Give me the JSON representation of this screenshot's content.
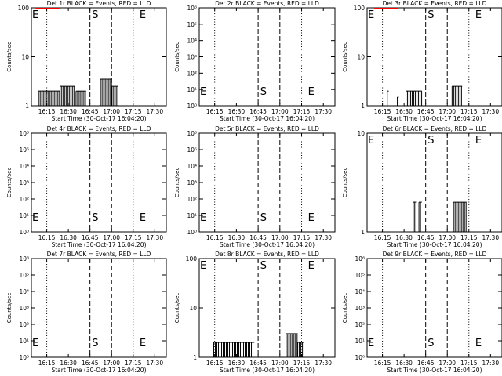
{
  "chart_data": [
    {
      "type": "line",
      "title": "Det 1r BLACK = Events, RED = LLD",
      "xlabel": "Start Time (30-Oct-17 16:04:20)",
      "ylabel": "Counts/sec",
      "x_tick_labels": [
        "16:15",
        "16:30",
        "16:45",
        "17:00",
        "17:15",
        "17:30"
      ],
      "y_scale": "log",
      "ylim": [
        1,
        100
      ],
      "y_tick_labels": [
        "1",
        "10",
        "100"
      ],
      "markers": [
        {
          "label": "E",
          "minute": 0
        },
        {
          "label": "S",
          "minute": 41
        },
        {
          "label": "E",
          "minute": 74
        }
      ],
      "events": [
        {
          "from": 5,
          "to": 20,
          "level": 2
        },
        {
          "from": 20,
          "to": 30,
          "level": 2.5
        },
        {
          "from": 31,
          "to": 38,
          "level": 2
        },
        {
          "from": 48,
          "to": 56,
          "level": 3.5
        },
        {
          "from": 56,
          "to": 60,
          "level": 2.5
        }
      ],
      "lld": [
        {
          "from": 3,
          "to": 20,
          "level": 100
        }
      ]
    },
    {
      "type": "line",
      "title": "Det 2r BLACK = Events, RED = LLD",
      "xlabel": "Start Time (30-Oct-17 16:04:20)",
      "ylabel": "Counts/sec",
      "x_tick_labels": [
        "16:15",
        "16:30",
        "16:45",
        "17:00",
        "17:15",
        "17:30"
      ],
      "y_scale": "log",
      "ylim": [
        1,
        1000000
      ],
      "y_tick_labels": [
        "10⁰",
        "10¹",
        "10²",
        "10³",
        "10⁴",
        "10⁵",
        "10⁶"
      ],
      "markers": [
        {
          "label": "E",
          "minute": 0
        },
        {
          "label": "S",
          "minute": 41
        },
        {
          "label": "E",
          "minute": 74
        }
      ],
      "events": [],
      "lld": []
    },
    {
      "type": "line",
      "title": "Det 3r BLACK = Events, RED = LLD",
      "xlabel": "Start Time (30-Oct-17 16:04:20)",
      "ylabel": "Counts/sec",
      "x_tick_labels": [
        "16:15",
        "16:30",
        "16:45",
        "17:00",
        "17:15",
        "17:30"
      ],
      "y_scale": "log",
      "ylim": [
        1,
        100
      ],
      "y_tick_labels": [
        "1",
        "10",
        "100"
      ],
      "markers": [
        {
          "label": "E",
          "minute": 0
        },
        {
          "label": "S",
          "minute": 41
        },
        {
          "label": "E",
          "minute": 74
        }
      ],
      "events": [
        {
          "from": 14,
          "to": 15,
          "level": 2
        },
        {
          "from": 21,
          "to": 22,
          "level": 1.5
        },
        {
          "from": 27,
          "to": 38,
          "level": 2
        },
        {
          "from": 59,
          "to": 66,
          "level": 2.5
        }
      ],
      "lld": [
        {
          "from": 5,
          "to": 22,
          "level": 100
        }
      ]
    },
    {
      "type": "line",
      "title": "Det 4r BLACK = Events, RED = LLD",
      "xlabel": "Start Time (30-Oct-17 16:04:20)",
      "ylabel": "Counts/sec",
      "x_tick_labels": [
        "16:15",
        "16:30",
        "16:45",
        "17:00",
        "17:15",
        "17:30"
      ],
      "y_scale": "log",
      "ylim": [
        1,
        1000000
      ],
      "y_tick_labels": [
        "10⁰",
        "10¹",
        "10²",
        "10³",
        "10⁴",
        "10⁵",
        "10⁶"
      ],
      "markers": [
        {
          "label": "E",
          "minute": 0
        },
        {
          "label": "S",
          "minute": 41
        },
        {
          "label": "E",
          "minute": 74
        }
      ],
      "events": [],
      "lld": []
    },
    {
      "type": "line",
      "title": "Det 5r BLACK = Events, RED = LLD",
      "xlabel": "Start Time (30-Oct-17 16:04:20)",
      "ylabel": "Counts/sec",
      "x_tick_labels": [
        "16:15",
        "16:30",
        "16:45",
        "17:00",
        "17:15",
        "17:30"
      ],
      "y_scale": "log",
      "ylim": [
        1,
        1000000
      ],
      "y_tick_labels": [
        "10⁰",
        "10¹",
        "10²",
        "10³",
        "10⁴",
        "10⁵",
        "10⁶"
      ],
      "markers": [
        {
          "label": "E",
          "minute": 0
        },
        {
          "label": "S",
          "minute": 41
        },
        {
          "label": "E",
          "minute": 74
        }
      ],
      "events": [],
      "lld": []
    },
    {
      "type": "line",
      "title": "Det 6r BLACK = Events, RED = LLD",
      "xlabel": "Start Time (30-Oct-17 16:04:20)",
      "ylabel": "Counts/sec",
      "x_tick_labels": [
        "16:15",
        "16:30",
        "16:45",
        "17:00",
        "17:15",
        "17:30"
      ],
      "y_scale": "log",
      "ylim": [
        1,
        10
      ],
      "y_tick_labels": [
        "1",
        "10"
      ],
      "markers": [
        {
          "label": "E",
          "minute": 0
        },
        {
          "label": "S",
          "minute": 41
        },
        {
          "label": "E",
          "minute": 74
        }
      ],
      "events": [
        {
          "from": 32,
          "to": 34,
          "level": 2
        },
        {
          "from": 36,
          "to": 38,
          "level": 2
        },
        {
          "from": 60,
          "to": 69,
          "level": 2
        }
      ],
      "lld": []
    },
    {
      "type": "line",
      "title": "Det 7r BLACK = Events, RED = LLD",
      "xlabel": "Start Time (30-Oct-17 16:04:20)",
      "ylabel": "Counts/sec",
      "x_tick_labels": [
        "16:15",
        "16:30",
        "16:45",
        "17:00",
        "17:15",
        "17:30"
      ],
      "y_scale": "log",
      "ylim": [
        1,
        1000000
      ],
      "y_tick_labels": [
        "10⁰",
        "10¹",
        "10²",
        "10³",
        "10⁴",
        "10⁵",
        "10⁶"
      ],
      "markers": [
        {
          "label": "E",
          "minute": 0
        },
        {
          "label": "S",
          "minute": 41
        },
        {
          "label": "E",
          "minute": 74
        }
      ],
      "events": [],
      "lld": []
    },
    {
      "type": "line",
      "title": "Det 8r BLACK = Events, RED = LLD",
      "xlabel": "Start Time (30-Oct-17 16:04:20)",
      "ylabel": "Counts/sec",
      "x_tick_labels": [
        "16:15",
        "16:30",
        "16:45",
        "17:00",
        "17:15",
        "17:30"
      ],
      "y_scale": "log",
      "ylim": [
        1,
        100
      ],
      "y_tick_labels": [
        "1",
        "10",
        "100"
      ],
      "markers": [
        {
          "label": "E",
          "minute": 0
        },
        {
          "label": "S",
          "minute": 41
        },
        {
          "label": "E",
          "minute": 74
        }
      ],
      "events": [
        {
          "from": 10,
          "to": 38,
          "level": 2
        },
        {
          "from": 60,
          "to": 68,
          "level": 3
        },
        {
          "from": 68,
          "to": 72,
          "level": 2
        }
      ],
      "lld": []
    },
    {
      "type": "line",
      "title": "Det 9r BLACK = Events, RED = LLD",
      "xlabel": "Start Time (30-Oct-17 16:04:20)",
      "ylabel": "Counts/sec",
      "x_tick_labels": [
        "16:15",
        "16:30",
        "16:45",
        "17:00",
        "17:15",
        "17:30"
      ],
      "y_scale": "log",
      "ylim": [
        1,
        1000000
      ],
      "y_tick_labels": [
        "10⁰",
        "10¹",
        "10²",
        "10³",
        "10⁴",
        "10⁵",
        "10⁶"
      ],
      "markers": [
        {
          "label": "E",
          "minute": 0
        },
        {
          "label": "S",
          "minute": 41
        },
        {
          "label": "E",
          "minute": 74
        }
      ],
      "events": [],
      "lld": []
    }
  ],
  "x_axis": {
    "start": "16:04:20",
    "end": "17:38",
    "tick_times": [
      "16:15",
      "16:30",
      "16:45",
      "17:00",
      "17:15",
      "17:30"
    ],
    "dotted_times": [
      "16:15",
      "17:15"
    ],
    "dashed_times": [
      "16:45",
      "17:00"
    ]
  },
  "colors": {
    "events": "#000000",
    "lld": "#ff0000",
    "background": "#ffffff"
  }
}
